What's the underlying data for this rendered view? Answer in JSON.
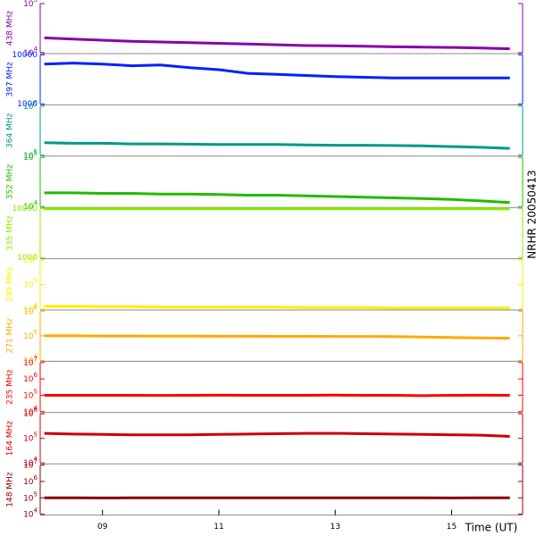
{
  "chart_data": {
    "type": "line",
    "ylog": true,
    "side_title": "NRHR 20050413",
    "xlabel": "Time (UT)",
    "x": [
      8,
      8.5,
      9,
      9.5,
      10,
      10.5,
      11,
      11.5,
      12,
      12.5,
      13,
      13.5,
      14,
      14.5,
      15,
      15.5,
      16
    ],
    "xlim": [
      7.93,
      16.22
    ],
    "xticks": [
      {
        "value": 9,
        "label": "09"
      },
      {
        "value": 11,
        "label": "11"
      },
      {
        "value": 13,
        "label": "13"
      },
      {
        "value": 15,
        "label": "15"
      }
    ],
    "series": [
      {
        "name": "438 MHz",
        "color": "#8800aa",
        "ylim": [
          10000,
          100000
        ],
        "yticks": [
          {
            "value": 10000,
            "label": "10",
            "exponent": "4"
          },
          {
            "value": 100000,
            "label": "10",
            "exponent": "5"
          }
        ],
        "values": [
          20000,
          19000,
          18000,
          17000,
          16500,
          16000,
          15500,
          15000,
          14500,
          14000,
          13800,
          13500,
          13200,
          13000,
          12800,
          12500,
          12000
        ]
      },
      {
        "name": "397 MHz",
        "color": "#0022ff",
        "ylim": [
          1000,
          10000
        ],
        "yticks": [
          1000,
          10000
        ],
        "values": [
          6500,
          6800,
          6500,
          6000,
          6200,
          5500,
          5000,
          4200,
          4000,
          3800,
          3600,
          3500,
          3400,
          3400,
          3400,
          3400,
          3400
        ]
      },
      {
        "name": "364 MHz",
        "color": "#009988",
        "ylim": [
          100000,
          1000000
        ],
        "yticks": [
          {
            "value": 100000,
            "label": "10",
            "exponent": "5"
          },
          {
            "value": 1000000,
            "label": "10",
            "exponent": "6"
          }
        ],
        "values": [
          180000,
          175000,
          175000,
          170000,
          170000,
          168000,
          165000,
          165000,
          165000,
          162000,
          160000,
          160000,
          158000,
          155000,
          150000,
          145000,
          138000
        ]
      },
      {
        "name": "352 MHz",
        "color": "#22bb00",
        "ylim": [
          10000,
          100000
        ],
        "yticks": [
          {
            "value": 10000,
            "label": "10",
            "exponent": "4"
          },
          {
            "value": 100000,
            "label": "10",
            "exponent": "5"
          }
        ],
        "values": [
          19000,
          19000,
          18500,
          18500,
          18000,
          18000,
          17500,
          17000,
          17000,
          16500,
          16000,
          15500,
          15000,
          14500,
          14000,
          13000,
          12000
        ]
      },
      {
        "name": "335 MHz",
        "color": "#88ee00",
        "ylim": [
          1000,
          10000
        ],
        "yticks": [
          1000,
          10000
        ],
        "values": [
          9900,
          9900,
          9900,
          9900,
          9900,
          9900,
          9900,
          9900,
          9900,
          9900,
          9900,
          9900,
          9900,
          9900,
          9900,
          9900,
          9900
        ]
      },
      {
        "name": "299 MHz",
        "color": "#ffee00",
        "ylim": [
          10000,
          1000000
        ],
        "yticks": [
          {
            "value": 10000,
            "label": "10",
            "exponent": "4"
          },
          {
            "value": 100000,
            "label": "10",
            "exponent": "5"
          },
          {
            "value": 1000000,
            "label": "10",
            "exponent": "6"
          }
        ],
        "values": [
          13000,
          13000,
          12500,
          12500,
          12000,
          12000,
          12000,
          12000,
          12000,
          11500,
          11500,
          11500,
          11000,
          11000,
          11000,
          11000,
          11000
        ]
      },
      {
        "name": "271 MHz",
        "color": "#ffaa00",
        "ylim": [
          10000,
          1000000
        ],
        "yticks": [
          {
            "value": 10000,
            "label": "10",
            "exponent": "4"
          },
          {
            "value": 100000,
            "label": "10",
            "exponent": "5"
          },
          {
            "value": 1000000,
            "label": "10",
            "exponent": "6"
          }
        ],
        "values": [
          100000,
          100000,
          98000,
          98000,
          97000,
          97000,
          96000,
          96000,
          95000,
          95000,
          94000,
          94000,
          93000,
          90000,
          85000,
          82000,
          80000
        ]
      },
      {
        "name": "235 MHz",
        "color": "#ff0000",
        "ylim": [
          10000,
          10000000
        ],
        "yticks": [
          {
            "value": 10000,
            "label": "10",
            "exponent": "4"
          },
          {
            "value": 100000,
            "label": "10",
            "exponent": "5"
          },
          {
            "value": 1000000,
            "label": "10",
            "exponent": "6"
          },
          {
            "value": 10000000,
            "label": "10",
            "exponent": "7"
          }
        ],
        "values": [
          100000,
          100000,
          99000,
          99000,
          98000,
          100000,
          101000,
          100000,
          99000,
          100000,
          102000,
          100000,
          99000,
          95000,
          100000,
          101000,
          100000
        ]
      },
      {
        "name": "164 MHz",
        "color": "#cc0000",
        "ylim": [
          10000,
          1000000
        ],
        "yticks": [
          {
            "value": 10000,
            "label": "10",
            "exponent": "4"
          },
          {
            "value": 100000,
            "label": "10",
            "exponent": "5"
          },
          {
            "value": 1000000,
            "label": "10",
            "exponent": "6"
          }
        ],
        "values": [
          160000,
          150000,
          145000,
          140000,
          140000,
          140000,
          145000,
          150000,
          155000,
          160000,
          160000,
          155000,
          150000,
          145000,
          140000,
          135000,
          120000
        ]
      },
      {
        "name": "148 MHz",
        "color": "#880000",
        "ylim": [
          10000,
          10000000
        ],
        "yticks": [
          {
            "value": 10000,
            "label": "10",
            "exponent": "4"
          },
          {
            "value": 100000,
            "label": "10",
            "exponent": "5"
          },
          {
            "value": 1000000,
            "label": "10",
            "exponent": "6"
          },
          {
            "value": 10000000,
            "label": "10",
            "exponent": "7"
          }
        ],
        "values": [
          100000,
          100000,
          98000,
          100000,
          100000,
          99000,
          100000,
          100000,
          101000,
          100000,
          100000,
          99000,
          100000,
          100000,
          98000,
          100000,
          100000
        ]
      }
    ]
  }
}
